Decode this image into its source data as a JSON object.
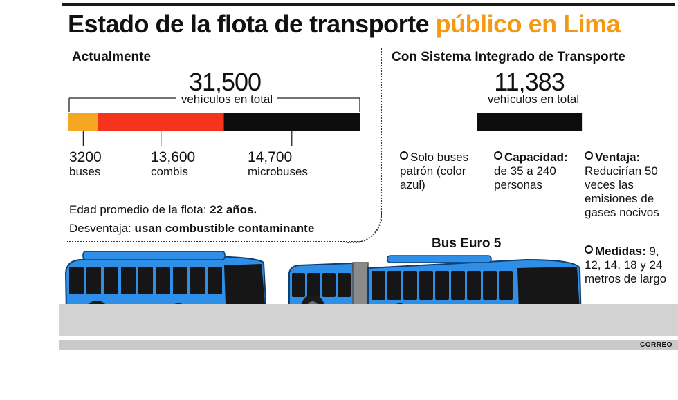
{
  "title": {
    "main": "Estado de la flota de transporte",
    "accent": "público en Lima"
  },
  "left": {
    "heading": "Actualmente",
    "total": "31,500",
    "total_sub": "vehículos en total",
    "segments": [
      {
        "value_label": "3200",
        "name": "buses",
        "value": 3200,
        "color": "#f5a623"
      },
      {
        "value_label": "13,600",
        "name": "combis",
        "value": 13600,
        "color": "#f5341e"
      },
      {
        "value_label": "14,700",
        "name": "microbuses",
        "value": 14700,
        "color": "#0d0d0d"
      }
    ],
    "age_label": "Edad promedio de la flota:",
    "age_value": "22 años.",
    "disadvantage_label": "Desventaja:",
    "disadvantage_value": "usan combustible contaminante"
  },
  "right": {
    "heading": "Con Sistema Integrado de Transporte",
    "total": "11,383",
    "total_sub": "vehículos en total",
    "bar_color": "#0d0d0d",
    "notes": {
      "buses": "Solo buses patrón (color azul)",
      "capacity_label": "Capacidad:",
      "capacity_value": "de 35 a 240 personas",
      "advantage_label": "Ventaja:",
      "advantage_value": "Reducirían 50 veces las emisiones de gases nocivos",
      "measures_label": "Medidas:",
      "measures_value": "9, 12, 14, 18 y 24 metros de largo"
    },
    "bus_label": "Bus Euro 5"
  },
  "credit": "CORREO",
  "colors": {
    "bus_blue": "#2f8ee6",
    "accent": "#f39a12"
  },
  "chart_data": [
    {
      "type": "bar",
      "title": "Actualmente",
      "categories": [
        "buses",
        "combis",
        "microbuses"
      ],
      "values": [
        3200,
        13600,
        14700
      ],
      "total": 31500,
      "stacked": true
    },
    {
      "type": "bar",
      "title": "Con Sistema Integrado de Transporte",
      "values": [
        11383
      ],
      "total": 11383
    }
  ]
}
